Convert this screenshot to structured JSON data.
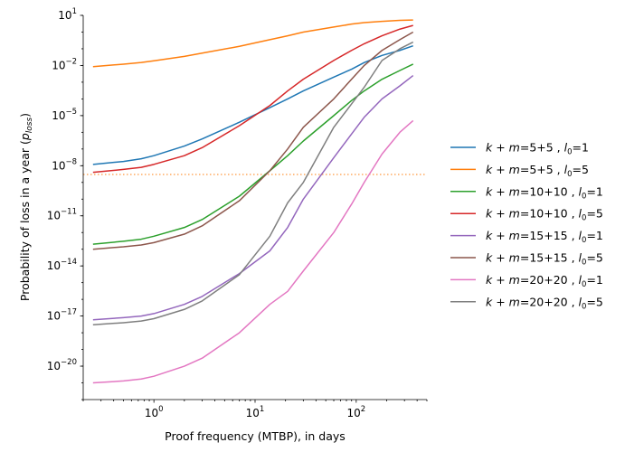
{
  "chart_data": {
    "type": "line",
    "title": "",
    "xlabel": "Proof frequency (MTBP), in days",
    "ylabel_parts": [
      "Probability of loss in a year (",
      "p",
      "loss",
      ")"
    ],
    "xscale": "log",
    "yscale": "log",
    "xlim": [
      0.2,
      500
    ],
    "ylim": [
      1e-22,
      10
    ],
    "grid": false,
    "legend_position": "right, outside plot",
    "x_ticks": [
      {
        "base": "10",
        "exp": "0",
        "value": 1
      },
      {
        "base": "10",
        "exp": "1",
        "value": 10
      },
      {
        "base": "10",
        "exp": "2",
        "value": 100
      }
    ],
    "y_ticks": [
      {
        "base": "10",
        "exp": "1",
        "value": 10
      },
      {
        "base": "10",
        "exp": "−2",
        "value": 0.01
      },
      {
        "base": "10",
        "exp": "−5",
        "value": 1e-05
      },
      {
        "base": "10",
        "exp": "−8",
        "value": 1e-08
      },
      {
        "base": "10",
        "exp": "−11",
        "value": 1e-11
      },
      {
        "base": "10",
        "exp": "−14",
        "value": 1e-14
      },
      {
        "base": "10",
        "exp": "−17",
        "value": 1e-17
      },
      {
        "base": "10",
        "exp": "−20",
        "value": 1e-20
      }
    ],
    "reference_line": {
      "y": 3e-09,
      "color": "#ff7f0e",
      "style": "dotted"
    },
    "x": [
      0.25,
      0.5,
      0.75,
      1,
      2,
      3,
      7,
      14,
      21,
      30,
      60,
      90,
      120,
      180,
      270,
      365
    ],
    "series": [
      {
        "label": {
          "lhs": "k + m",
          "rhs": "5+5",
          "l0": "1"
        },
        "color": "#1f77b4",
        "values": [
          1.2e-08,
          1.8e-08,
          2.6e-08,
          4e-08,
          1.5e-07,
          4e-07,
          4e-06,
          3e-05,
          0.0001,
          0.0003,
          0.002,
          0.006,
          0.015,
          0.04,
          0.08,
          0.15
        ]
      },
      {
        "label": {
          "lhs": "k + m",
          "rhs": "5+5",
          "l0": "5"
        },
        "color": "#ff7f0e",
        "values": [
          0.0085,
          0.012,
          0.015,
          0.019,
          0.035,
          0.055,
          0.14,
          0.35,
          0.6,
          1.0,
          2.0,
          3.0,
          3.7,
          4.4,
          5.0,
          5.3
        ]
      },
      {
        "label": {
          "lhs": "k + m",
          "rhs": "10+10",
          "l0": "1"
        },
        "color": "#2ca02c",
        "values": [
          2e-13,
          3e-13,
          4e-13,
          6e-13,
          2e-12,
          6e-12,
          1.5e-10,
          5e-09,
          4e-08,
          3e-07,
          1e-05,
          8e-05,
          0.0003,
          0.0015,
          0.005,
          0.012
        ]
      },
      {
        "label": {
          "lhs": "k + m",
          "rhs": "10+10",
          "l0": "5"
        },
        "color": "#d62728",
        "values": [
          4e-09,
          6e-09,
          8e-09,
          1.2e-08,
          4e-08,
          1.2e-07,
          2.5e-06,
          4e-05,
          0.0003,
          0.0015,
          0.02,
          0.08,
          0.2,
          0.6,
          1.5,
          2.5
        ]
      },
      {
        "label": {
          "lhs": "k + m",
          "rhs": "15+15",
          "l0": "1"
        },
        "color": "#9467bd",
        "values": [
          6e-18,
          8e-18,
          1e-17,
          1.4e-17,
          5e-17,
          1.5e-16,
          3.5e-15,
          8e-14,
          2e-12,
          1e-10,
          3e-08,
          8e-07,
          8e-06,
          0.0001,
          0.0006,
          0.0025
        ]
      },
      {
        "label": {
          "lhs": "k + m",
          "rhs": "15+15",
          "l0": "5"
        },
        "color": "#8c564b",
        "values": [
          1e-13,
          1.4e-13,
          1.8e-13,
          2.5e-13,
          8e-13,
          2.5e-12,
          8e-11,
          5e-09,
          1e-07,
          2e-06,
          0.0001,
          0.0015,
          0.01,
          0.08,
          0.35,
          1.0
        ]
      },
      {
        "label": {
          "lhs": "k + m",
          "rhs": "20+20",
          "l0": "1"
        },
        "color": "#e377c2",
        "values": [
          1e-21,
          1.3e-21,
          1.7e-21,
          2.5e-21,
          1e-20,
          3e-20,
          1e-18,
          5e-17,
          3e-16,
          5e-15,
          1e-12,
          5e-11,
          1e-09,
          5e-08,
          1e-06,
          5e-06
        ]
      },
      {
        "label": {
          "lhs": "k + m",
          "rhs": "20+20",
          "l0": "5"
        },
        "color": "#7f7f7f",
        "values": [
          3e-18,
          4e-18,
          5e-18,
          7e-18,
          2.5e-17,
          8e-17,
          3e-15,
          6e-13,
          6e-11,
          1e-09,
          2e-06,
          5e-05,
          0.0005,
          0.02,
          0.1,
          0.25
        ]
      }
    ]
  }
}
